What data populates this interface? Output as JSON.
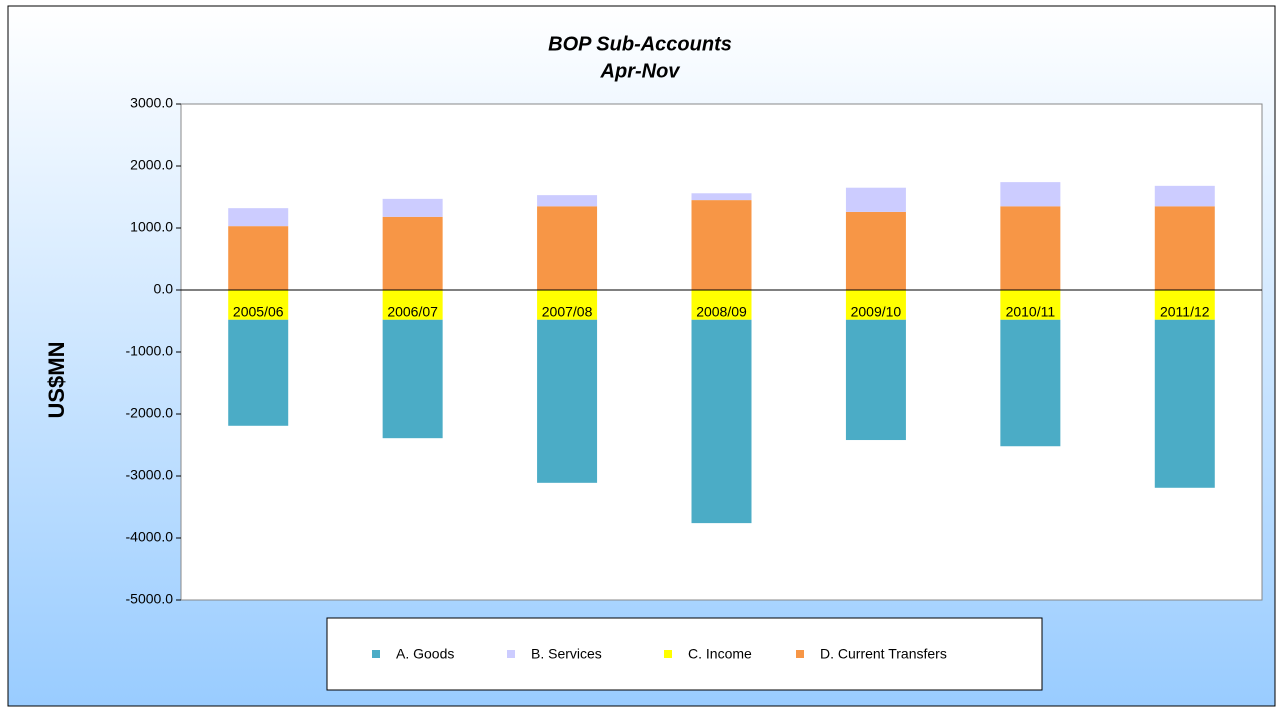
{
  "chart_data": {
    "type": "stacked_bar",
    "title": "BOP Sub-Accounts",
    "subtitle": "Apr-Nov",
    "y_label": "US$MN",
    "categories": [
      "2005/06",
      "2006/07",
      "2007/08",
      "2008/09",
      "2009/10",
      "2010/11",
      "2011/12"
    ],
    "series": [
      {
        "name": "A. Goods",
        "color": "#4bacc6",
        "values": [
          -1710,
          -1910,
          -2630,
          -3280,
          -1940,
          -2040,
          -2710
        ]
      },
      {
        "name": "B. Services",
        "color": "#ccccff",
        "values": [
          290,
          290,
          180,
          110,
          390,
          390,
          330
        ]
      },
      {
        "name": "C. Income",
        "color": "#ffff00",
        "values": [
          -480,
          -480,
          -480,
          -480,
          -480,
          -480,
          -480
        ]
      },
      {
        "name": "D. Current Transfers",
        "color": "#f79646",
        "values": [
          1030,
          1180,
          1350,
          1450,
          1260,
          1350,
          1350
        ]
      }
    ],
    "ylim": [
      -5000,
      3000
    ],
    "yticks": [
      {
        "value": -5000,
        "label": "-5000.0"
      },
      {
        "value": -4000,
        "label": "-4000.0"
      },
      {
        "value": -3000,
        "label": "-3000.0"
      },
      {
        "value": -2000,
        "label": "-2000.0"
      },
      {
        "value": -1000,
        "label": "-1000.0"
      },
      {
        "value": 0,
        "label": "0.0"
      },
      {
        "value": 1000,
        "label": "1000.0"
      },
      {
        "value": 2000,
        "label": "2000.0"
      },
      {
        "value": 3000,
        "label": "3000.0"
      }
    ],
    "legend": "bottom"
  }
}
